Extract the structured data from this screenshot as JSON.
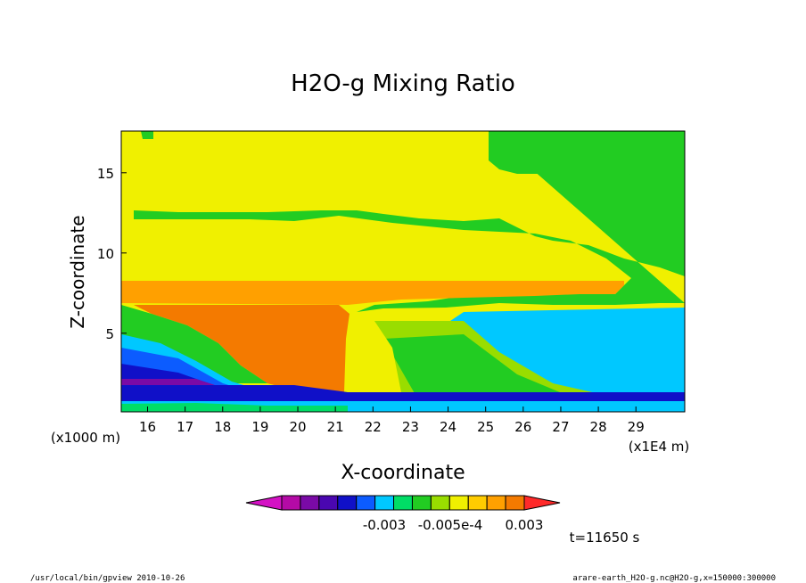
{
  "chart_data": {
    "type": "heatmap",
    "title": "H2O-g Mixing Ratio",
    "xlabel": "X-coordinate",
    "ylabel": "Z-coordinate",
    "x_unit_label": "(x1E4 m)",
    "y_unit_label": "(x1000 m)",
    "xlim": [
      15.3,
      30.3
    ],
    "ylim": [
      0.1,
      17.6
    ],
    "x_ticks": [
      "16",
      "17",
      "18",
      "19",
      "20",
      "21",
      "22",
      "23",
      "24",
      "25",
      "26",
      "27",
      "28",
      "29"
    ],
    "y_ticks": [
      "5",
      "10",
      "15"
    ],
    "colorbar": {
      "colors": [
        "#d411c4",
        "#b40aa6",
        "#7a0aa6",
        "#4a07b0",
        "#1010c8",
        "#0c5cff",
        "#00c8ff",
        "#00dd66",
        "#22cc22",
        "#99dd00",
        "#f0f000",
        "#ffcc00",
        "#ffa000",
        "#f47a00",
        "#ff2a2a"
      ],
      "labels": [
        "-0.003",
        "-0.005e-4",
        "0.003"
      ]
    },
    "time_label": "t=11650 s",
    "footer_left": "/usr/local/bin/gpview  2010-10-26",
    "footer_right": "arare-earth_H2O-g.nc@H2O-g,x=150000:300000"
  }
}
